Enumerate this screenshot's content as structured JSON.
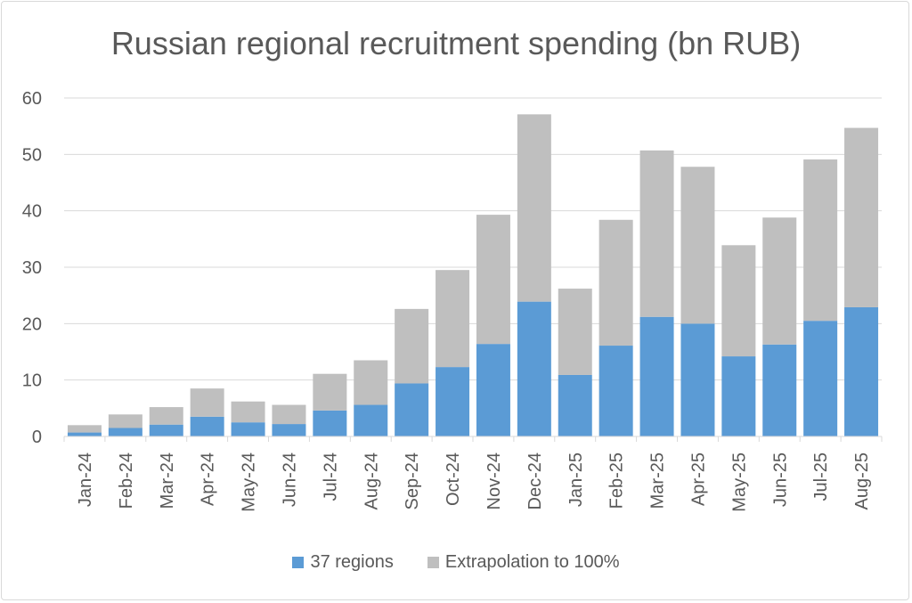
{
  "chart_data": {
    "type": "bar",
    "stacked": true,
    "title": "Russian regional recruitment spending (bn RUB)",
    "xlabel": "",
    "ylabel": "",
    "ylim": [
      0,
      60
    ],
    "yticks": [
      "0",
      "10",
      "20",
      "30",
      "40",
      "50",
      "60"
    ],
    "grid": true,
    "legend_position": "bottom",
    "categories": [
      "Jan-24",
      "Feb-24",
      "Mar-24",
      "Apr-24",
      "May-24",
      "Jun-24",
      "Jul-24",
      "Aug-24",
      "Sep-24",
      "Oct-24",
      "Nov-24",
      "Dec-24",
      "Jan-25",
      "Feb-25",
      "Mar-25",
      "Apr-25",
      "May-25",
      "Jun-25",
      "Jul-25",
      "Aug-25"
    ],
    "series": [
      {
        "name": "37 regions",
        "color": "#5b9bd5",
        "values": [
          0.7,
          1.5,
          2.1,
          3.5,
          2.5,
          2.2,
          4.6,
          5.6,
          9.4,
          12.3,
          16.4,
          23.9,
          10.9,
          16.1,
          21.2,
          20.0,
          14.2,
          16.3,
          20.5,
          22.9
        ]
      },
      {
        "name": "Extrapolation to 100%",
        "color": "#bfbfbf",
        "values": [
          1.3,
          2.4,
          3.1,
          5.0,
          3.7,
          3.4,
          6.5,
          7.9,
          13.2,
          17.2,
          22.9,
          33.2,
          15.3,
          22.3,
          29.5,
          27.8,
          19.7,
          22.5,
          28.6,
          31.8
        ]
      }
    ],
    "totals": [
      2.0,
      3.9,
      5.2,
      8.5,
      6.2,
      5.6,
      11.1,
      13.5,
      22.6,
      29.5,
      39.3,
      57.1,
      26.2,
      38.4,
      50.7,
      47.8,
      33.9,
      38.8,
      49.1,
      54.7
    ]
  }
}
